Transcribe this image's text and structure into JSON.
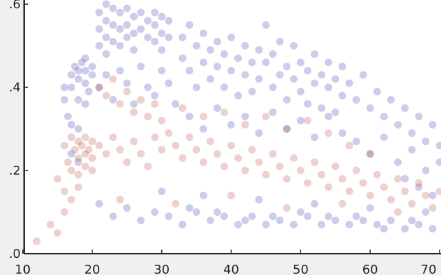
{
  "chart_data": {
    "type": "scatter",
    "title": "",
    "xlabel": "",
    "ylabel": "",
    "xlim": [
      10,
      70
    ],
    "ylim": [
      0.0,
      0.6
    ],
    "x_ticks": [
      10,
      20,
      30,
      40,
      50,
      60,
      70
    ],
    "x_tick_labels": [
      "10",
      "20",
      "30",
      "40",
      "50",
      "60",
      "70"
    ],
    "y_ticks": [
      0.0,
      0.2,
      0.4,
      0.6
    ],
    "y_tick_labels": [
      ".0",
      ".2",
      ".4",
      ".6"
    ],
    "grid": false,
    "legend": "none",
    "marker": {
      "style": "circle",
      "opacity": 0.22
    },
    "series": [
      {
        "color": "#1a1aa6",
        "points": [
          [
            17,
            0.4
          ],
          [
            17,
            0.43
          ],
          [
            17.5,
            0.45
          ],
          [
            18,
            0.44
          ],
          [
            18,
            0.42
          ],
          [
            18.5,
            0.46
          ],
          [
            19,
            0.44
          ],
          [
            19,
            0.41
          ],
          [
            19,
            0.47
          ],
          [
            19.5,
            0.39
          ],
          [
            20,
            0.43
          ],
          [
            20,
            0.45
          ],
          [
            19,
            0.36
          ],
          [
            18,
            0.37
          ],
          [
            16,
            0.37
          ],
          [
            16,
            0.4
          ],
          [
            16.5,
            0.33
          ],
          [
            17,
            0.31
          ],
          [
            18,
            0.3
          ],
          [
            17,
            0.24
          ],
          [
            18,
            0.22
          ],
          [
            21,
            0.58
          ],
          [
            21,
            0.54
          ],
          [
            21,
            0.5
          ],
          [
            22,
            0.6
          ],
          [
            22,
            0.56
          ],
          [
            22,
            0.52
          ],
          [
            22,
            0.48
          ],
          [
            23,
            0.59
          ],
          [
            23,
            0.55
          ],
          [
            23,
            0.51
          ],
          [
            24,
            0.58
          ],
          [
            24,
            0.54
          ],
          [
            24,
            0.5
          ],
          [
            25,
            0.59
          ],
          [
            25,
            0.55
          ],
          [
            25,
            0.52
          ],
          [
            26,
            0.57
          ],
          [
            26,
            0.53
          ],
          [
            26,
            0.49
          ],
          [
            27,
            0.58
          ],
          [
            27,
            0.54
          ],
          [
            28,
            0.56
          ],
          [
            28,
            0.52
          ],
          [
            29,
            0.58
          ],
          [
            29,
            0.55
          ],
          [
            29,
            0.51
          ],
          [
            30,
            0.57
          ],
          [
            30,
            0.53
          ],
          [
            30,
            0.49
          ],
          [
            31,
            0.56
          ],
          [
            31,
            0.52
          ],
          [
            21,
            0.4
          ],
          [
            22,
            0.43
          ],
          [
            23,
            0.37
          ],
          [
            24,
            0.44
          ],
          [
            25,
            0.41
          ],
          [
            26,
            0.36
          ],
          [
            27,
            0.45
          ],
          [
            28,
            0.4
          ],
          [
            29,
            0.38
          ],
          [
            30,
            0.44
          ],
          [
            31,
            0.41
          ],
          [
            32,
            0.36
          ],
          [
            33,
            0.52
          ],
          [
            33,
            0.47
          ],
          [
            34,
            0.55
          ],
          [
            34,
            0.44
          ],
          [
            35,
            0.5
          ],
          [
            35,
            0.4
          ],
          [
            36,
            0.53
          ],
          [
            36,
            0.46
          ],
          [
            37,
            0.49
          ],
          [
            37,
            0.42
          ],
          [
            38,
            0.51
          ],
          [
            38,
            0.45
          ],
          [
            39,
            0.48
          ],
          [
            39,
            0.4
          ],
          [
            40,
            0.52
          ],
          [
            40,
            0.44
          ],
          [
            41,
            0.47
          ],
          [
            41,
            0.38
          ],
          [
            42,
            0.5
          ],
          [
            42,
            0.43
          ],
          [
            43,
            0.46
          ],
          [
            43,
            0.39
          ],
          [
            44,
            0.49
          ],
          [
            44,
            0.42
          ],
          [
            45,
            0.55
          ],
          [
            45,
            0.46
          ],
          [
            46,
            0.48
          ],
          [
            46,
            0.4
          ],
          [
            47,
            0.51
          ],
          [
            47,
            0.43
          ],
          [
            48,
            0.45
          ],
          [
            48,
            0.37
          ],
          [
            49,
            0.5
          ],
          [
            49,
            0.42
          ],
          [
            50,
            0.46
          ],
          [
            50,
            0.39
          ],
          [
            51,
            0.44
          ],
          [
            51,
            0.36
          ],
          [
            52,
            0.48
          ],
          [
            52,
            0.41
          ],
          [
            53,
            0.43
          ],
          [
            53,
            0.35
          ],
          [
            54,
            0.46
          ],
          [
            54,
            0.4
          ],
          [
            55,
            0.42
          ],
          [
            55,
            0.34
          ],
          [
            56,
            0.45
          ],
          [
            56,
            0.38
          ],
          [
            34,
            0.33
          ],
          [
            36,
            0.3
          ],
          [
            38,
            0.35
          ],
          [
            40,
            0.31
          ],
          [
            42,
            0.33
          ],
          [
            44,
            0.29
          ],
          [
            46,
            0.34
          ],
          [
            48,
            0.3
          ],
          [
            50,
            0.32
          ],
          [
            52,
            0.28
          ],
          [
            54,
            0.33
          ],
          [
            56,
            0.29
          ],
          [
            57,
            0.41
          ],
          [
            58,
            0.37
          ],
          [
            59,
            0.43
          ],
          [
            60,
            0.35
          ],
          [
            61,
            0.39
          ],
          [
            62,
            0.33
          ],
          [
            63,
            0.37
          ],
          [
            64,
            0.31
          ],
          [
            65,
            0.35
          ],
          [
            66,
            0.29
          ],
          [
            67,
            0.33
          ],
          [
            68,
            0.27
          ],
          [
            69,
            0.31
          ],
          [
            70,
            0.26
          ],
          [
            58,
            0.27
          ],
          [
            60,
            0.24
          ],
          [
            62,
            0.28
          ],
          [
            64,
            0.22
          ],
          [
            66,
            0.25
          ],
          [
            68,
            0.2
          ],
          [
            70,
            0.22
          ],
          [
            65,
            0.18
          ],
          [
            67,
            0.16
          ],
          [
            69,
            0.14
          ],
          [
            21,
            0.12
          ],
          [
            23,
            0.09
          ],
          [
            25,
            0.11
          ],
          [
            27,
            0.08
          ],
          [
            29,
            0.1
          ],
          [
            31,
            0.09
          ],
          [
            33,
            0.07
          ],
          [
            35,
            0.1
          ],
          [
            37,
            0.08
          ],
          [
            39,
            0.09
          ],
          [
            41,
            0.07
          ],
          [
            43,
            0.09
          ],
          [
            45,
            0.07
          ],
          [
            47,
            0.08
          ],
          [
            49,
            0.07
          ],
          [
            51,
            0.09
          ],
          [
            53,
            0.07
          ],
          [
            55,
            0.08
          ],
          [
            57,
            0.07
          ],
          [
            59,
            0.08
          ],
          [
            61,
            0.07
          ],
          [
            63,
            0.08
          ],
          [
            65,
            0.06
          ],
          [
            67,
            0.07
          ],
          [
            69,
            0.06
          ],
          [
            34,
            0.11
          ],
          [
            38,
            0.1
          ],
          [
            42,
            0.08
          ],
          [
            46,
            0.09
          ],
          [
            50,
            0.1
          ],
          [
            54,
            0.09
          ],
          [
            58,
            0.09
          ],
          [
            62,
            0.06
          ],
          [
            66,
            0.08
          ],
          [
            30,
            0.15
          ],
          [
            36,
            0.14
          ],
          [
            44,
            0.13
          ],
          [
            52,
            0.12
          ],
          [
            60,
            0.11
          ],
          [
            68,
            0.1
          ]
        ]
      },
      {
        "color": "#b02a1a",
        "points": [
          [
            16,
            0.26
          ],
          [
            16.5,
            0.22
          ],
          [
            17,
            0.28
          ],
          [
            17,
            0.2
          ],
          [
            17.5,
            0.25
          ],
          [
            18,
            0.27
          ],
          [
            18,
            0.23
          ],
          [
            18,
            0.19
          ],
          [
            18.5,
            0.26
          ],
          [
            19,
            0.24
          ],
          [
            19,
            0.21
          ],
          [
            19,
            0.28
          ],
          [
            19.5,
            0.25
          ],
          [
            20,
            0.23
          ],
          [
            20,
            0.27
          ],
          [
            20,
            0.2
          ],
          [
            15,
            0.18
          ],
          [
            16,
            0.15
          ],
          [
            17,
            0.13
          ],
          [
            18,
            0.16
          ],
          [
            16,
            0.1
          ],
          [
            14,
            0.07
          ],
          [
            15,
            0.05
          ],
          [
            12,
            0.03
          ],
          [
            21,
            0.26
          ],
          [
            22,
            0.24
          ],
          [
            23,
            0.28
          ],
          [
            24,
            0.25
          ],
          [
            25,
            0.22
          ],
          [
            26,
            0.27
          ],
          [
            27,
            0.24
          ],
          [
            28,
            0.21
          ],
          [
            21,
            0.4
          ],
          [
            22,
            0.38
          ],
          [
            23,
            0.42
          ],
          [
            24,
            0.36
          ],
          [
            25,
            0.39
          ],
          [
            26,
            0.34
          ],
          [
            27,
            0.37
          ],
          [
            28,
            0.33
          ],
          [
            29,
            0.36
          ],
          [
            30,
            0.32
          ],
          [
            29,
            0.28
          ],
          [
            30,
            0.25
          ],
          [
            31,
            0.29
          ],
          [
            32,
            0.26
          ],
          [
            33,
            0.23
          ],
          [
            34,
            0.28
          ],
          [
            35,
            0.25
          ],
          [
            36,
            0.22
          ],
          [
            37,
            0.27
          ],
          [
            38,
            0.24
          ],
          [
            39,
            0.21
          ],
          [
            40,
            0.26
          ],
          [
            41,
            0.23
          ],
          [
            42,
            0.2
          ],
          [
            43,
            0.25
          ],
          [
            44,
            0.22
          ],
          [
            45,
            0.19
          ],
          [
            46,
            0.24
          ],
          [
            47,
            0.21
          ],
          [
            48,
            0.18
          ],
          [
            49,
            0.23
          ],
          [
            50,
            0.2
          ],
          [
            51,
            0.17
          ],
          [
            52,
            0.22
          ],
          [
            53,
            0.19
          ],
          [
            54,
            0.16
          ],
          [
            55,
            0.21
          ],
          [
            56,
            0.18
          ],
          [
            57,
            0.15
          ],
          [
            58,
            0.2
          ],
          [
            59,
            0.17
          ],
          [
            60,
            0.14
          ],
          [
            61,
            0.19
          ],
          [
            62,
            0.16
          ],
          [
            63,
            0.13
          ],
          [
            64,
            0.18
          ],
          [
            65,
            0.15
          ],
          [
            66,
            0.12
          ],
          [
            67,
            0.17
          ],
          [
            68,
            0.14
          ],
          [
            69,
            0.11
          ],
          [
            70,
            0.15
          ],
          [
            33,
            0.35
          ],
          [
            36,
            0.33
          ],
          [
            39,
            0.34
          ],
          [
            42,
            0.31
          ],
          [
            45,
            0.33
          ],
          [
            48,
            0.3
          ],
          [
            51,
            0.32
          ],
          [
            54,
            0.29
          ],
          [
            57,
            0.26
          ],
          [
            60,
            0.24
          ],
          [
            24,
            0.13
          ],
          [
            32,
            0.12
          ],
          [
            40,
            0.14
          ],
          [
            48,
            0.11
          ],
          [
            56,
            0.12
          ],
          [
            64,
            0.1
          ]
        ]
      }
    ]
  }
}
